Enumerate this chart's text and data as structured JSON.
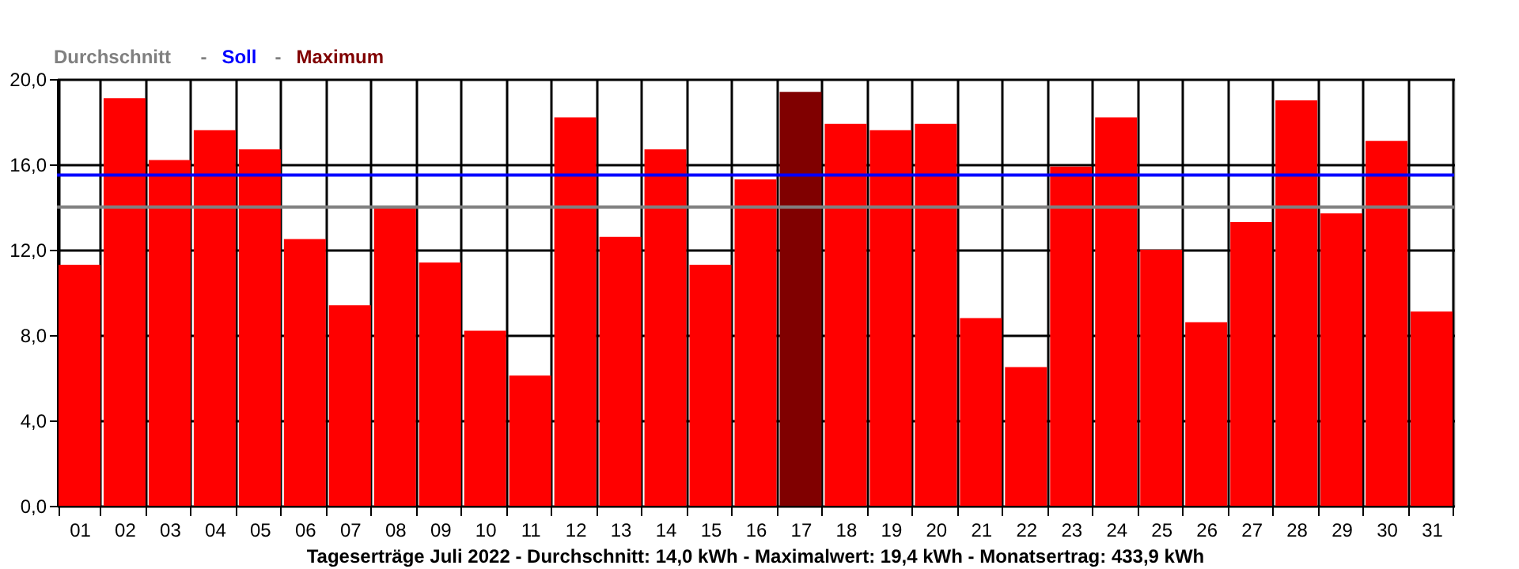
{
  "chart_data": {
    "type": "bar",
    "title": "Tageserträge Juli 2022 - Durchschnitt: 14,0 kWh - Maximalwert: 19,4 kWh - Monatsertrag: 433,9 kWh",
    "categories": [
      "01",
      "02",
      "03",
      "04",
      "05",
      "06",
      "07",
      "08",
      "09",
      "10",
      "11",
      "12",
      "13",
      "14",
      "15",
      "16",
      "17",
      "18",
      "19",
      "20",
      "21",
      "22",
      "23",
      "24",
      "25",
      "26",
      "27",
      "28",
      "29",
      "30",
      "31"
    ],
    "series": [
      {
        "color": "#ff0000",
        "values": [
          11.3,
          19.1,
          16.2,
          17.6,
          16.7,
          12.5,
          9.4,
          14.0,
          11.4,
          8.2,
          6.1,
          18.2,
          12.6,
          16.7,
          11.3,
          15.3,
          null,
          17.9,
          17.6,
          17.9,
          8.8,
          6.5,
          15.9,
          18.2,
          12.0,
          8.6,
          13.3,
          19.0,
          13.7,
          17.1,
          9.1
        ]
      },
      {
        "name": "Maximum",
        "color": "#800000",
        "values": [
          null,
          null,
          null,
          null,
          null,
          null,
          null,
          null,
          null,
          null,
          null,
          null,
          null,
          null,
          null,
          null,
          19.4,
          null,
          null,
          null,
          null,
          null,
          null,
          null,
          null,
          null,
          null,
          null,
          null,
          null,
          null
        ]
      }
    ],
    "ylim": [
      0,
      20
    ],
    "yticks": [
      {
        "value": 0,
        "label": "0,0"
      },
      {
        "value": 4,
        "label": "4,0"
      },
      {
        "value": 8,
        "label": "8,0"
      },
      {
        "value": 12,
        "label": "12,0"
      },
      {
        "value": 16,
        "label": "16,0"
      },
      {
        "value": 20,
        "label": "20,0"
      }
    ],
    "ref_lines": [
      {
        "axis": "y",
        "value": 14.0,
        "label": "Durchschnitt",
        "color": "#808080"
      },
      {
        "axis": "y",
        "value": 15.5,
        "label": "Soll",
        "color": "#0000ff"
      }
    ],
    "legend_title": "-",
    "grid": true,
    "legend": "top left"
  }
}
